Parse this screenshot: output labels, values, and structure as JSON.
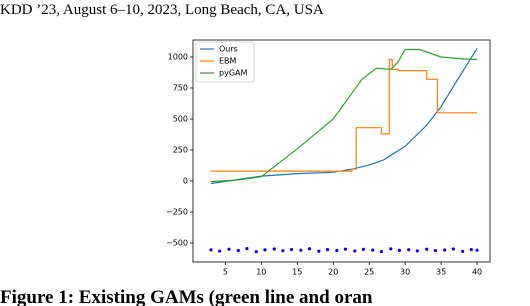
{
  "header": "KDD ’23, August 6–10, 2023, Long Beach, CA, USA",
  "caption": "Figure 1: Existing GAMs (green line and oran",
  "chart_data": {
    "type": "line",
    "xlim": [
      0.5,
      41.8
    ],
    "ylim": [
      -653,
      1137
    ],
    "xticks": [
      5,
      10,
      15,
      20,
      25,
      30,
      35,
      40
    ],
    "yticks": [
      {
        "value": -500,
        "label": "−500"
      },
      {
        "value": -250,
        "label": "−250"
      },
      0,
      250,
      500,
      750,
      1000
    ],
    "legend": "upper left",
    "series": [
      {
        "name": "Ours",
        "color": "#1f77b4",
        "x": [
          3,
          6,
          10,
          15,
          20,
          23,
          25,
          27,
          30,
          33,
          35,
          37,
          40
        ],
        "values": [
          -20,
          5,
          40,
          60,
          70,
          100,
          130,
          170,
          280,
          450,
          600,
          790,
          1070
        ]
      },
      {
        "name": "EBM",
        "color": "#ff7f0e",
        "x": [
          3,
          22.6,
          22.6,
          23.2,
          23.2,
          26.7,
          26.7,
          27.8,
          27.8,
          28.2,
          28.2,
          29,
          29,
          33,
          33,
          34.5,
          34.5,
          40
        ],
        "values": [
          80,
          80,
          95,
          95,
          430,
          430,
          380,
          380,
          980,
          980,
          900,
          900,
          890,
          890,
          820,
          820,
          550,
          550
        ]
      },
      {
        "name": "pyGAM",
        "color": "#2ca02c",
        "x": [
          3,
          7,
          10,
          15,
          20,
          22,
          24,
          26,
          28,
          29,
          30,
          32,
          35,
          38,
          40
        ],
        "values": [
          -5,
          10,
          35,
          260,
          500,
          660,
          820,
          910,
          900,
          960,
          1060,
          1060,
          1000,
          985,
          980
        ]
      }
    ],
    "rug": {
      "color": "#0000ff",
      "x": [
        3,
        4.2,
        5.5,
        6.8,
        8,
        9.3,
        10.5,
        11.8,
        13,
        14.2,
        15.5,
        16.7,
        18,
        19.2,
        20.5,
        21.7,
        23,
        24.2,
        25.5,
        26.7,
        28,
        29.2,
        30.5,
        31.7,
        33,
        34.2,
        35.5,
        36.7,
        38,
        39.2,
        40
      ],
      "values": [
        -555,
        -565,
        -550,
        -560,
        -545,
        -570,
        -555,
        -548,
        -562,
        -552,
        -558,
        -546,
        -566,
        -553,
        -560,
        -549,
        -564,
        -551,
        -557,
        -569,
        -547,
        -559,
        -554,
        -563,
        -550,
        -561,
        -556,
        -548,
        -567,
        -553,
        -558
      ]
    }
  }
}
